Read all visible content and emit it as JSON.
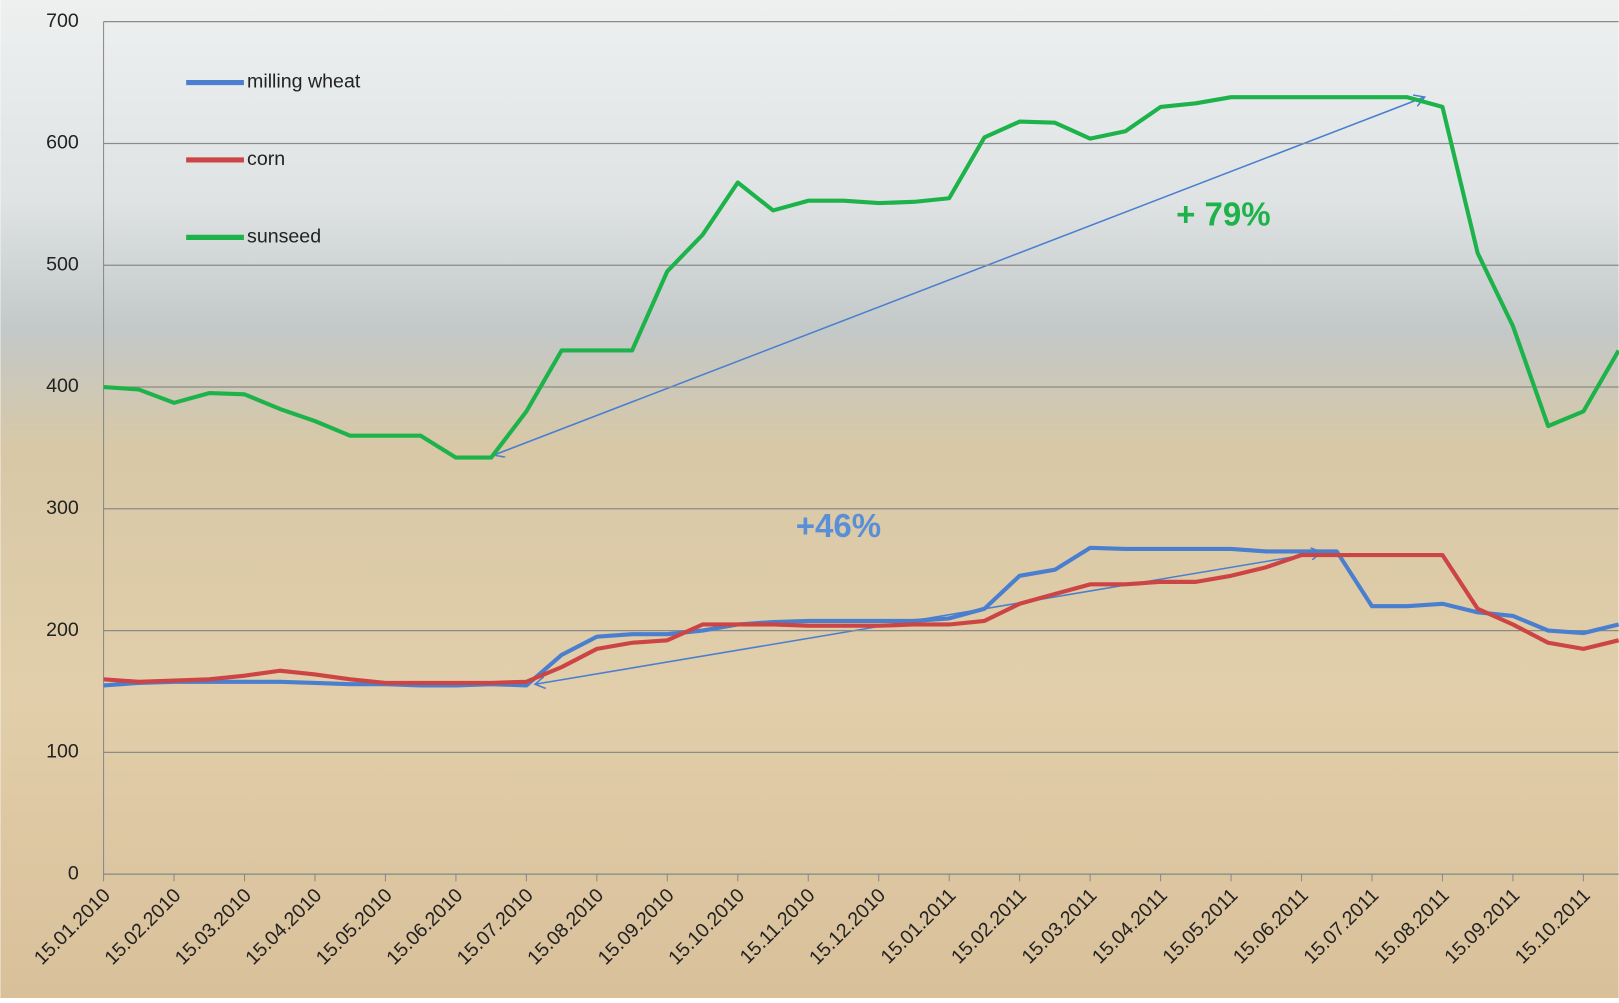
{
  "chart_data": {
    "type": "line",
    "categories": [
      "15.01.2010",
      null,
      "15.02.2010",
      null,
      "15.03.2010",
      null,
      "15.04.2010",
      null,
      "15.05.2010",
      null,
      "15.06.2010",
      null,
      "15.07.2010",
      null,
      "15.08.2010",
      null,
      "15.09.2010",
      null,
      "15.10.2010",
      null,
      "15.11.2010",
      null,
      "15.12.2010",
      null,
      "15.01.2011",
      null,
      "15.02.2011",
      null,
      "15.03.2011",
      null,
      "15.04.2011",
      null,
      "15.05.2011",
      null,
      "15.06.2011",
      null,
      "15.07.2011",
      null,
      "15.08.2011",
      null,
      "15.09.2011",
      null,
      "15.10.2011",
      null
    ],
    "series": [
      {
        "name": "milling wheat",
        "color": "#4a7fcf",
        "values": [
          155,
          157,
          158,
          158,
          158,
          158,
          157,
          156,
          156,
          155,
          155,
          156,
          155,
          180,
          195,
          197,
          197,
          200,
          205,
          207,
          208,
          208,
          208,
          208,
          210,
          218,
          245,
          250,
          268,
          267,
          267,
          267,
          267,
          265,
          265,
          265,
          220,
          220,
          222,
          215,
          212,
          200,
          198,
          205
        ]
      },
      {
        "name": "corn",
        "color": "#cc4444",
        "values": [
          160,
          158,
          159,
          160,
          163,
          167,
          164,
          160,
          157,
          157,
          157,
          157,
          158,
          170,
          185,
          190,
          192,
          205,
          205,
          205,
          204,
          204,
          204,
          205,
          205,
          208,
          222,
          230,
          238,
          238,
          240,
          240,
          245,
          252,
          262,
          262,
          262,
          262,
          262,
          218,
          205,
          190,
          185,
          192
        ]
      },
      {
        "name": "sunseed",
        "color": "#1db34a",
        "values": [
          400,
          398,
          387,
          395,
          394,
          382,
          372,
          360,
          360,
          360,
          342,
          342,
          380,
          430,
          430,
          430,
          495,
          525,
          568,
          545,
          553,
          553,
          551,
          552,
          555,
          605,
          618,
          617,
          604,
          610,
          630,
          633,
          638,
          638,
          638,
          638,
          638,
          638,
          630,
          510,
          450,
          368,
          380,
          430
        ]
      }
    ],
    "ylim": [
      0,
      700
    ],
    "yticks": [
      0,
      100,
      200,
      300,
      400,
      500,
      600,
      700
    ],
    "grid": true,
    "legend": "top-left",
    "annotations": [
      "+ 79%",
      "+46%"
    ]
  }
}
